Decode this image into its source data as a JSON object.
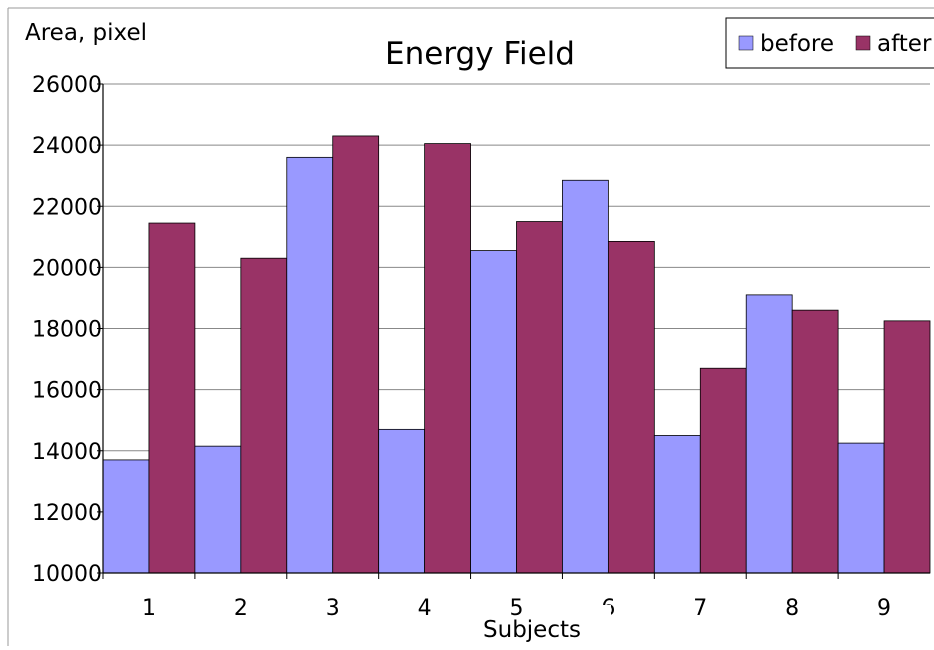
{
  "chart_data": {
    "type": "bar",
    "title": "Energy Field",
    "ylabel": "Area,  pixel",
    "xlabel": "Subjects",
    "categories": [
      "1",
      "2",
      "3",
      "4",
      "5",
      "6",
      "7",
      "8",
      "9"
    ],
    "series": [
      {
        "name": "before",
        "color": "#9999ff",
        "values": [
          13700,
          14150,
          23600,
          14700,
          20550,
          22850,
          14500,
          19100,
          14250
        ]
      },
      {
        "name": "after",
        "color": "#993366",
        "values": [
          21450,
          20300,
          24300,
          24050,
          21500,
          20850,
          16700,
          18600,
          18250
        ]
      }
    ],
    "ylim": [
      10000,
      26000
    ],
    "yticks": [
      "10000",
      "12000",
      "14000",
      "16000",
      "18000",
      "20000",
      "22000",
      "24000",
      "26000"
    ],
    "grid": true,
    "legend_position": "top-right"
  }
}
